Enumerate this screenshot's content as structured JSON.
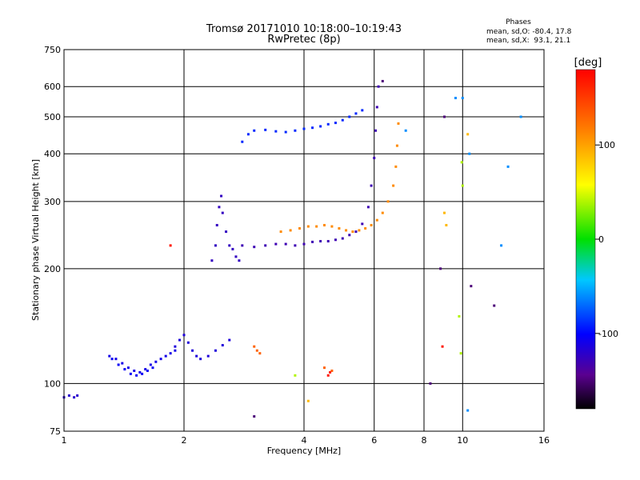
{
  "chart_data": {
    "type": "scatter",
    "title": "Tromsø 20171010 10:18:00–10:19:43",
    "subtitle": "RwPretec (8p)",
    "xlabel": "Frequency [MHz]",
    "ylabel": "Stationary phase Virtual Height [km]",
    "x_scale": "log",
    "y_scale": "log",
    "xlim": [
      1,
      16
    ],
    "ylim": [
      75,
      750
    ],
    "x_ticks": [
      1,
      2,
      4,
      6,
      8,
      10,
      16
    ],
    "y_ticks": [
      75,
      100,
      200,
      300,
      400,
      500,
      600,
      750
    ],
    "grid": true,
    "phases_box": {
      "heading": "Phases",
      "line1": "mean, sd,O: -80.4, 17.8",
      "line2": "mean, sd,X:  93.1, 21.1"
    },
    "colorbar": {
      "label": "[deg]",
      "ticks": [
        100,
        0,
        -100
      ],
      "range": [
        -180,
        180
      ],
      "colormap": "rainbow"
    },
    "traces": [
      {
        "phase": -120,
        "points": [
          [
            1.0,
            92
          ],
          [
            1.03,
            93
          ],
          [
            1.06,
            92
          ],
          [
            1.08,
            93
          ]
        ]
      },
      {
        "phase": -110,
        "points": [
          [
            1.3,
            118
          ],
          [
            1.35,
            116
          ],
          [
            1.4,
            113
          ],
          [
            1.45,
            110
          ],
          [
            1.5,
            108
          ],
          [
            1.55,
            107
          ],
          [
            1.6,
            109
          ],
          [
            1.65,
            112
          ],
          [
            1.7,
            114
          ],
          [
            1.75,
            116
          ],
          [
            1.8,
            118
          ],
          [
            1.85,
            120
          ],
          [
            1.9,
            122
          ]
        ]
      },
      {
        "phase": -105,
        "points": [
          [
            1.32,
            116
          ],
          [
            1.37,
            112
          ],
          [
            1.42,
            109
          ],
          [
            1.47,
            106
          ],
          [
            1.52,
            105
          ],
          [
            1.57,
            106
          ],
          [
            1.62,
            108
          ],
          [
            1.67,
            110
          ]
        ]
      },
      {
        "phase": -115,
        "points": [
          [
            1.9,
            125
          ],
          [
            1.95,
            130
          ],
          [
            2.0,
            134
          ],
          [
            2.05,
            128
          ],
          [
            2.1,
            122
          ],
          [
            2.15,
            118
          ],
          [
            2.2,
            116
          ],
          [
            2.3,
            118
          ],
          [
            2.4,
            122
          ],
          [
            2.5,
            126
          ],
          [
            2.6,
            130
          ]
        ]
      },
      {
        "phase": -125,
        "points": [
          [
            2.35,
            210
          ],
          [
            2.4,
            230
          ],
          [
            2.42,
            260
          ],
          [
            2.45,
            290
          ],
          [
            2.48,
            310
          ],
          [
            2.5,
            280
          ],
          [
            2.55,
            250
          ],
          [
            2.6,
            230
          ],
          [
            2.65,
            225
          ],
          [
            2.7,
            215
          ],
          [
            2.75,
            210
          ]
        ]
      },
      {
        "phase": -90,
        "points": [
          [
            2.8,
            430
          ],
          [
            2.9,
            450
          ],
          [
            3.0,
            460
          ],
          [
            3.2,
            462
          ],
          [
            3.4,
            458
          ],
          [
            3.6,
            456
          ],
          [
            3.8,
            460
          ],
          [
            4.0,
            465
          ],
          [
            4.2,
            468
          ],
          [
            4.4,
            472
          ],
          [
            4.6,
            478
          ],
          [
            4.8,
            482
          ],
          [
            5.0,
            490
          ],
          [
            5.2,
            500
          ],
          [
            5.4,
            510
          ],
          [
            5.6,
            520
          ]
        ]
      },
      {
        "phase": -130,
        "points": [
          [
            2.8,
            230
          ],
          [
            3.0,
            228
          ],
          [
            3.2,
            230
          ],
          [
            3.4,
            232
          ],
          [
            3.6,
            232
          ],
          [
            3.8,
            230
          ],
          [
            4.0,
            232
          ],
          [
            4.2,
            235
          ],
          [
            4.4,
            236
          ],
          [
            4.6,
            236
          ],
          [
            4.8,
            238
          ],
          [
            5.0,
            240
          ],
          [
            5.2,
            245
          ],
          [
            5.4,
            250
          ],
          [
            5.6,
            262
          ],
          [
            5.8,
            290
          ],
          [
            5.9,
            330
          ],
          [
            6.0,
            390
          ],
          [
            6.05,
            460
          ],
          [
            6.1,
            530
          ],
          [
            6.15,
            600
          ]
        ]
      },
      {
        "phase": 110,
        "points": [
          [
            3.5,
            250
          ],
          [
            3.7,
            252
          ],
          [
            3.9,
            255
          ],
          [
            4.1,
            258
          ],
          [
            4.3,
            258
          ],
          [
            4.5,
            260
          ],
          [
            4.7,
            258
          ],
          [
            4.9,
            255
          ],
          [
            5.1,
            252
          ],
          [
            5.3,
            250
          ],
          [
            5.5,
            252
          ],
          [
            5.7,
            255
          ],
          [
            5.9,
            260
          ],
          [
            6.1,
            268
          ],
          [
            6.3,
            280
          ],
          [
            6.5,
            300
          ],
          [
            6.7,
            330
          ],
          [
            6.8,
            370
          ],
          [
            6.85,
            420
          ],
          [
            6.9,
            480
          ]
        ]
      },
      {
        "phase": 130,
        "points": [
          [
            3.0,
            125
          ],
          [
            3.05,
            122
          ],
          [
            3.1,
            120
          ],
          [
            4.5,
            110
          ],
          [
            4.7,
            108
          ]
        ]
      },
      {
        "phase": -150,
        "points": [
          [
            3.0,
            82
          ],
          [
            6.3,
            620
          ],
          [
            8.3,
            100
          ],
          [
            8.8,
            200
          ],
          [
            9.0,
            500
          ],
          [
            10.5,
            180
          ],
          [
            12.0,
            160
          ]
        ]
      },
      {
        "phase": 170,
        "points": [
          [
            1.85,
            230
          ],
          [
            4.6,
            105
          ],
          [
            4.65,
            107
          ],
          [
            8.9,
            125
          ]
        ]
      },
      {
        "phase": 40,
        "points": [
          [
            3.8,
            105
          ],
          [
            9.8,
            150
          ],
          [
            9.9,
            120
          ],
          [
            9.95,
            380
          ],
          [
            10.0,
            330
          ]
        ]
      },
      {
        "phase": 90,
        "points": [
          [
            9.0,
            280
          ],
          [
            9.1,
            260
          ],
          [
            10.3,
            450
          ],
          [
            4.1,
            90
          ]
        ]
      },
      {
        "phase": -60,
        "points": [
          [
            9.6,
            560
          ],
          [
            10.0,
            560
          ],
          [
            10.4,
            400
          ],
          [
            13.0,
            370
          ],
          [
            12.5,
            230
          ],
          [
            10.3,
            85
          ],
          [
            14.0,
            500
          ],
          [
            7.2,
            460
          ]
        ]
      }
    ]
  }
}
